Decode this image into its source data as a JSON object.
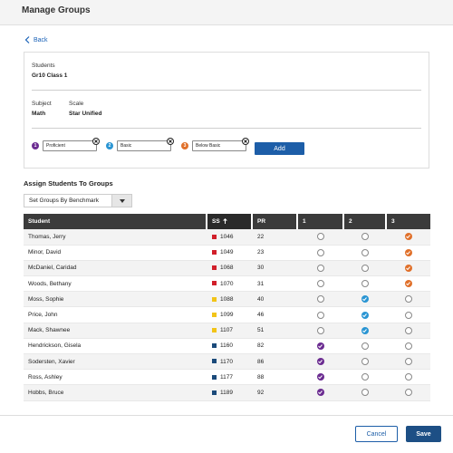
{
  "header": {
    "title": "Manage Groups"
  },
  "nav": {
    "back_label": "Back"
  },
  "info": {
    "students_label": "Students",
    "students_value": "Gr10 Class 1",
    "subject_label": "Subject",
    "subject_value": "Math",
    "scale_label": "Scale",
    "scale_value": "Star Unified"
  },
  "groups": [
    {
      "number": "1",
      "name": "Proficient",
      "color": "#6b2c91"
    },
    {
      "number": "2",
      "name": "Basic",
      "color": "#2a95d3"
    },
    {
      "number": "3",
      "name": "Below Basic",
      "color": "#e0702a"
    }
  ],
  "add_label": "Add",
  "assign": {
    "title": "Assign Students To Groups",
    "select_value": "Set Groups By Benchmark"
  },
  "table": {
    "columns": [
      "Student",
      "SS",
      "PR",
      "1",
      "2",
      "3"
    ],
    "sort_indicator": "up-arrow-icon",
    "rows": [
      {
        "name": "Thomas, Jerry",
        "ss": "1046",
        "pr": "22",
        "swatch": "#d11f2a",
        "group": 3
      },
      {
        "name": "Minor, David",
        "ss": "1049",
        "pr": "23",
        "swatch": "#d11f2a",
        "group": 3
      },
      {
        "name": "McDaniel, Caridad",
        "ss": "1068",
        "pr": "30",
        "swatch": "#d11f2a",
        "group": 3
      },
      {
        "name": "Woods, Bethany",
        "ss": "1070",
        "pr": "31",
        "swatch": "#d11f2a",
        "group": 3
      },
      {
        "name": "Moss, Sophie",
        "ss": "1088",
        "pr": "40",
        "swatch": "#f2c418",
        "group": 2
      },
      {
        "name": "Price, John",
        "ss": "1099",
        "pr": "46",
        "swatch": "#f2c418",
        "group": 2
      },
      {
        "name": "Mack, Shawnee",
        "ss": "1107",
        "pr": "51",
        "swatch": "#f2c418",
        "group": 2
      },
      {
        "name": "Hendrickson, Gisela",
        "ss": "1160",
        "pr": "82",
        "swatch": "#1b4a7a",
        "group": 1
      },
      {
        "name": "Sodersten, Xavier",
        "ss": "1170",
        "pr": "86",
        "swatch": "#1b4a7a",
        "group": 1
      },
      {
        "name": "Ross, Ashley",
        "ss": "1177",
        "pr": "88",
        "swatch": "#1b4a7a",
        "group": 1
      },
      {
        "name": "Hobbs, Bruce",
        "ss": "1189",
        "pr": "92",
        "swatch": "#1b4a7a",
        "group": 1
      }
    ]
  },
  "footer": {
    "cancel_label": "Cancel",
    "save_label": "Save"
  }
}
